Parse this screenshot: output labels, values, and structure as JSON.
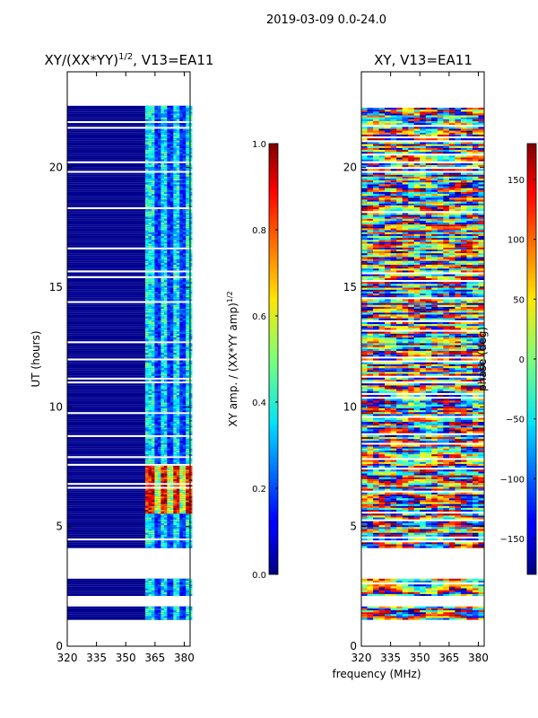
{
  "figure_title": "2019-03-09 0.0-24.0",
  "xlabel": "frequency (MHz)",
  "ylabel": "UT (hours)",
  "chart_data": [
    {
      "type": "heatmap",
      "title_main": "XY/(XX*YY)",
      "title_sup": "1/2",
      "title_rest": ", V13=EA11",
      "x_ticks": [
        "320",
        "335",
        "350",
        "365",
        "380"
      ],
      "x_values": [
        320,
        335,
        350,
        365,
        380
      ],
      "xlim": [
        320,
        383
      ],
      "y_ticks": [
        "0",
        "5",
        "10",
        "15",
        "20"
      ],
      "y_values": [
        0,
        5,
        10,
        15,
        20
      ],
      "ylim": [
        0,
        24
      ],
      "colorbar": {
        "label_main": "XY amp. / (XX*YY amp)",
        "label_sup": "1/2",
        "ticks": [
          "0.0",
          "0.2",
          "0.4",
          "0.6",
          "0.8",
          "1.0"
        ],
        "tick_values": [
          0.0,
          0.2,
          0.4,
          0.6,
          0.8,
          1.0
        ],
        "range": [
          0.0,
          1.0
        ],
        "colormap": "jet"
      }
    },
    {
      "type": "heatmap",
      "title": "XY, V13=EA11",
      "x_ticks": [
        "320",
        "335",
        "350",
        "365",
        "380"
      ],
      "x_values": [
        320,
        335,
        350,
        365,
        380
      ],
      "xlim": [
        320,
        383
      ],
      "y_ticks": [
        "0",
        "5",
        "10",
        "15",
        "20"
      ],
      "y_values": [
        0,
        5,
        10,
        15,
        20
      ],
      "ylim": [
        0,
        24
      ],
      "colorbar": {
        "label": "phase (deg)",
        "ticks": [
          "−150",
          "−100",
          "−50",
          "0",
          "50",
          "100",
          "150"
        ],
        "tick_values": [
          -150,
          -100,
          -50,
          0,
          50,
          100,
          150
        ],
        "range": [
          -180,
          180
        ],
        "colormap": "jet"
      }
    }
  ],
  "data_coverage": {
    "ut_ranges_hours": [
      [
        1.1,
        1.6
      ],
      [
        2.1,
        2.8
      ],
      [
        4.1,
        22.5
      ]
    ],
    "gap_ut_hours": [
      2.8,
      4.1
    ],
    "active_freq_mhz": [
      360,
      383
    ],
    "amp_high_ut_hours": [
      5.5,
      7.5
    ]
  }
}
